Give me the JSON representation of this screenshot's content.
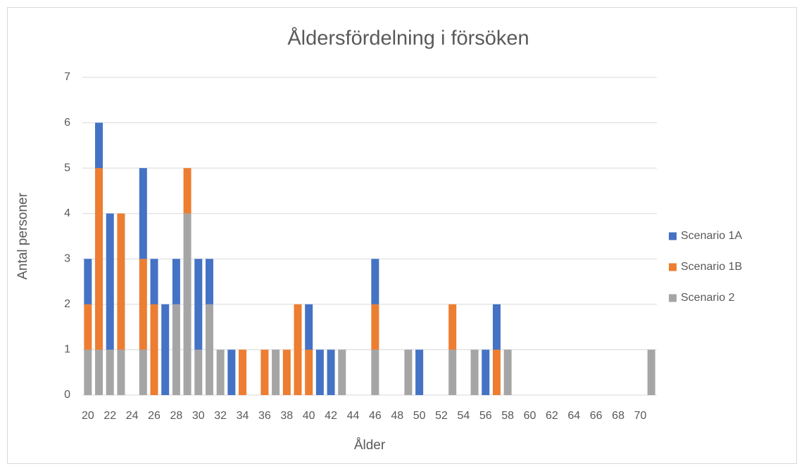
{
  "chart_data": {
    "type": "stacked_bar",
    "title": "Åldersfördelning i försöken",
    "x_label": "Ålder",
    "y_label": "Antal personer",
    "categories": [
      20,
      null,
      22,
      null,
      24,
      null,
      26,
      null,
      28,
      null,
      30,
      null,
      32,
      null,
      34,
      null,
      36,
      null,
      38,
      null,
      40,
      null,
      42,
      null,
      44,
      null,
      46,
      null,
      48,
      null,
      50,
      null,
      52,
      null,
      54,
      null,
      56,
      null,
      58,
      null,
      60,
      null,
      62,
      null,
      64,
      null,
      66,
      null,
      68,
      null,
      70,
      null
    ],
    "series": [
      {
        "name": "Scenario 1A",
        "color": "#4472c4",
        "values": [
          1,
          1,
          3,
          0,
          0,
          2,
          1,
          2,
          1,
          0,
          2,
          1,
          0,
          1,
          0,
          0,
          0,
          0,
          0,
          0,
          1,
          1,
          1,
          0,
          0,
          0,
          1,
          0,
          0,
          0,
          1,
          0,
          0,
          0,
          0,
          0,
          1,
          1,
          0,
          0,
          0,
          0,
          0,
          0,
          0,
          0,
          0,
          0,
          0,
          0,
          0,
          0
        ]
      },
      {
        "name": "Scenario 1B",
        "color": "#ed7d31",
        "values": [
          1,
          4,
          0,
          3,
          0,
          2,
          2,
          0,
          0,
          1,
          0,
          0,
          0,
          0,
          1,
          0,
          1,
          0,
          1,
          2,
          1,
          0,
          0,
          0,
          0,
          0,
          1,
          0,
          0,
          0,
          0,
          0,
          0,
          1,
          0,
          0,
          0,
          1,
          0,
          0,
          0,
          0,
          0,
          0,
          0,
          0,
          0,
          0,
          0,
          0,
          0,
          0
        ]
      },
      {
        "name": "Scenario 2",
        "color": "#a5a5a5",
        "values": [
          1,
          1,
          1,
          1,
          0,
          1,
          0,
          0,
          2,
          4,
          1,
          2,
          1,
          0,
          0,
          0,
          0,
          1,
          0,
          0,
          0,
          0,
          0,
          1,
          0,
          0,
          1,
          0,
          0,
          1,
          0,
          0,
          0,
          1,
          0,
          1,
          0,
          0,
          1,
          0,
          0,
          0,
          0,
          0,
          0,
          0,
          0,
          0,
          0,
          0,
          0,
          1
        ]
      }
    ],
    "ylim": [
      0,
      7
    ],
    "yticks": [
      0,
      1,
      2,
      3,
      4,
      5,
      6,
      7
    ],
    "grid": true,
    "legend": "right"
  }
}
